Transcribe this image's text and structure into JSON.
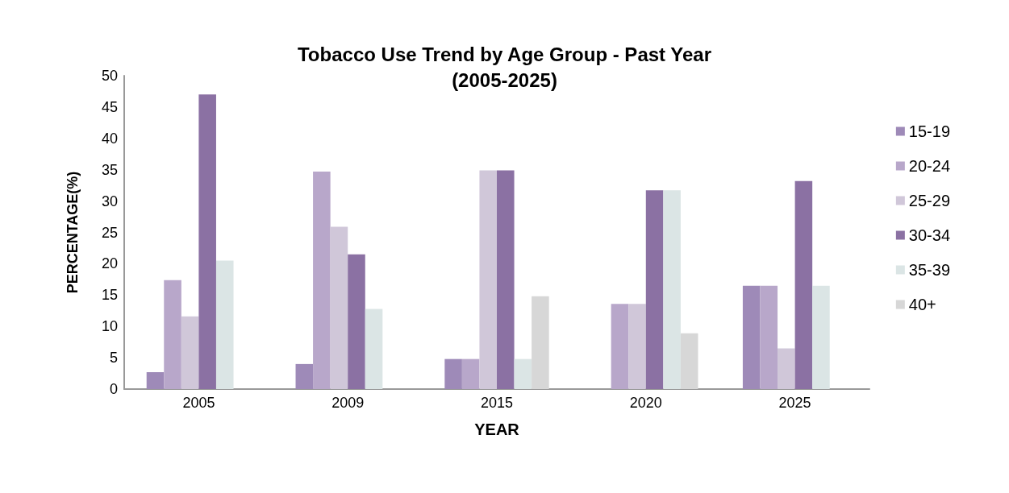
{
  "chart_data": {
    "type": "bar",
    "title": "Tobacco Use Trend by Age Group - Past Year\n(2005-2025)",
    "xlabel": "YEAR",
    "ylabel": "PERCENTAGE(%)",
    "categories": [
      "2005",
      "2009",
      "2015",
      "2020",
      "2025"
    ],
    "series": [
      {
        "name": "15-19",
        "color": "#9e8ab8",
        "values": [
          2.7,
          4.0,
          4.8,
          null,
          16.5
        ]
      },
      {
        "name": "20-24",
        "color": "#b8a7ca",
        "values": [
          17.4,
          34.7,
          4.8,
          13.6,
          16.5
        ]
      },
      {
        "name": "25-29",
        "color": "#d0c7d9",
        "values": [
          11.6,
          25.9,
          34.9,
          13.6,
          6.5
        ]
      },
      {
        "name": "30-34",
        "color": "#8b71a3",
        "values": [
          47,
          21.5,
          34.9,
          31.7,
          33.2
        ]
      },
      {
        "name": "35-39",
        "color": "#dbe5e5",
        "values": [
          20.5,
          12.8,
          4.8,
          31.7,
          16.5
        ]
      },
      {
        "name": "40+",
        "color": "#d7d7d7",
        "values": [
          null,
          null,
          14.8,
          8.9,
          null
        ]
      }
    ],
    "ylim": [
      0,
      50
    ],
    "yticks": [
      0,
      5,
      10,
      15,
      20,
      25,
      30,
      35,
      40,
      45,
      50
    ],
    "grid": false,
    "legend": "right"
  }
}
